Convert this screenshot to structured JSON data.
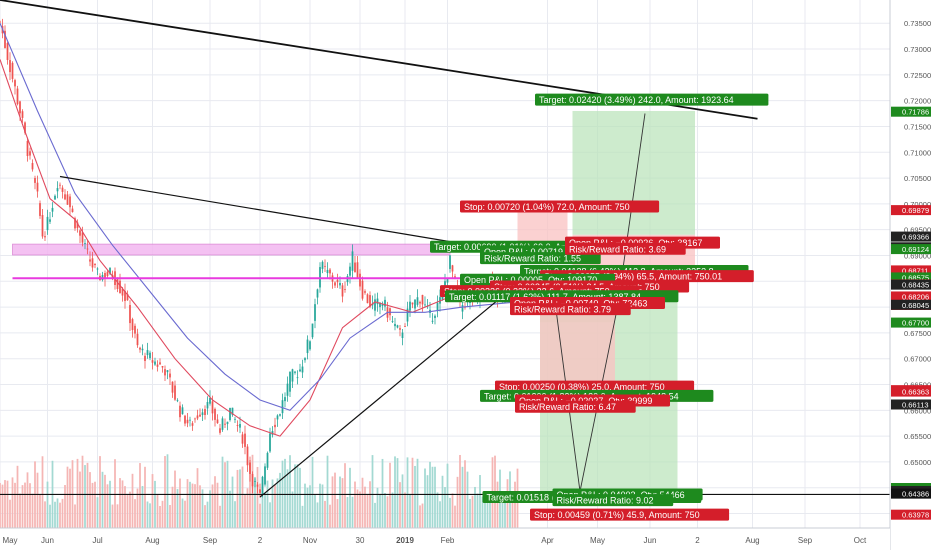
{
  "chart_data": {
    "type": "candlestick",
    "price_axis": {
      "range": [
        0.6372,
        0.7395
      ],
      "ticks": [
        "0.73500",
        "0.73000",
        "0.72500",
        "0.72000",
        "0.71500",
        "0.71000",
        "0.70500",
        "0.70000",
        "0.69500",
        "0.69000",
        "0.68500",
        "0.68000",
        "0.67500",
        "0.67000",
        "0.66500",
        "0.66000",
        "0.65500",
        "0.65000",
        "0.64500",
        "0.64000"
      ],
      "badges": [
        {
          "value": 0.71786,
          "label": "0.71786",
          "color": "#1e8a1e"
        },
        {
          "value": 0.69879,
          "label": "0.69879",
          "color": "#d41e2a"
        },
        {
          "value": 0.69366,
          "label": "0.69366",
          "color": "#222222"
        },
        {
          "value": 0.69159,
          "label": "0.69159",
          "color": "#222222"
        },
        {
          "value": 0.69124,
          "label": "0.69124",
          "color": "#1e8a1e"
        },
        {
          "value": 0.68711,
          "label": "0.68711",
          "color": "#d41e2a"
        },
        {
          "value": 0.68575,
          "label": "0.68575",
          "color": "#1e8a1e"
        },
        {
          "value": 0.6844,
          "label": "0.68440",
          "color": "#d41e2a"
        },
        {
          "value": 0.68435,
          "label": "0.68435",
          "color": "#222222"
        },
        {
          "value": 0.68206,
          "label": "0.68206",
          "color": "#d41e2a"
        },
        {
          "value": 0.68042,
          "label": "0.68042",
          "color": "#d41e2a"
        },
        {
          "value": 0.68045,
          "label": "0.68045",
          "color": "#222222"
        },
        {
          "value": 0.677,
          "label": "0.67700",
          "color": "#1e8a1e"
        },
        {
          "value": 0.66391,
          "label": "0.66391",
          "color": "#d41e2a"
        },
        {
          "value": 0.66363,
          "label": "0.66363",
          "color": "#d41e2a"
        },
        {
          "value": 0.66113,
          "label": "0.66113",
          "color": "#222222"
        },
        {
          "value": 0.64495,
          "label": "0.64495",
          "color": "#1e8a1e"
        },
        {
          "value": 0.64437,
          "label": "0.64437",
          "color": "#222222"
        },
        {
          "value": 0.64386,
          "label": "0.64386",
          "color": "#111111"
        },
        {
          "value": 0.63978,
          "label": "0.63978",
          "color": "#d41e2a"
        }
      ]
    },
    "time_axis": {
      "labels": [
        "May",
        "Jun",
        "Jul",
        "Aug",
        "Sep",
        "2",
        "Nov",
        "30",
        "2019",
        "Feb",
        "Apr",
        "May",
        "Jun",
        "2",
        "Aug",
        "Sep",
        "Oct"
      ],
      "positions": [
        0,
        19,
        39,
        61,
        84,
        104,
        124,
        144,
        162,
        179,
        219,
        239,
        260,
        279,
        301,
        322,
        344
      ],
      "total_days": 356
    },
    "candles_approx": {
      "description": "Price path (daily close, approx.) from May to early Mar",
      "path": [
        [
          0,
          0.7352
        ],
        [
          4,
          0.7265
        ],
        [
          8,
          0.718
        ],
        [
          12,
          0.708
        ],
        [
          15,
          0.701
        ],
        [
          17,
          0.694
        ],
        [
          19,
          0.696
        ],
        [
          23,
          0.7045
        ],
        [
          27,
          0.701
        ],
        [
          31,
          0.695
        ],
        [
          35,
          0.69
        ],
        [
          39,
          0.686
        ],
        [
          45,
          0.6865
        ],
        [
          50,
          0.682
        ],
        [
          55,
          0.672
        ],
        [
          60,
          0.67
        ],
        [
          66,
          0.668
        ],
        [
          72,
          0.66
        ],
        [
          76,
          0.657
        ],
        [
          80,
          0.66
        ],
        [
          84,
          0.661
        ],
        [
          88,
          0.656
        ],
        [
          92,
          0.66
        ],
        [
          97,
          0.655
        ],
        [
          100,
          0.648
        ],
        [
          104,
          0.643
        ],
        [
          108,
          0.656
        ],
        [
          112,
          0.66
        ],
        [
          116,
          0.666
        ],
        [
          120,
          0.668
        ],
        [
          124,
          0.674
        ],
        [
          128,
          0.688
        ],
        [
          132,
          0.686
        ],
        [
          137,
          0.683
        ],
        [
          141,
          0.6895
        ],
        [
          145,
          0.683
        ],
        [
          149,
          0.68
        ],
        [
          153,
          0.681
        ],
        [
          157,
          0.677
        ],
        [
          160,
          0.6745
        ],
        [
          164,
          0.68
        ],
        [
          168,
          0.682
        ],
        [
          172,
          0.678
        ],
        [
          176,
          0.681
        ],
        [
          180,
          0.6888
        ],
        [
          184,
          0.68
        ],
        [
          188,
          0.682
        ],
        [
          192,
          0.682
        ],
        [
          196,
          0.686
        ],
        [
          200,
          0.681
        ],
        [
          204,
          0.684
        ],
        [
          207,
          0.6812
        ]
      ]
    },
    "moving_averages": [
      {
        "color": "#e0495e",
        "path": [
          [
            0,
            0.728
          ],
          [
            10,
            0.714
          ],
          [
            20,
            0.701
          ],
          [
            30,
            0.697
          ],
          [
            40,
            0.689
          ],
          [
            55,
            0.68
          ],
          [
            70,
            0.67
          ],
          [
            85,
            0.662
          ],
          [
            100,
            0.657
          ],
          [
            112,
            0.655
          ],
          [
            124,
            0.662
          ],
          [
            137,
            0.676
          ],
          [
            150,
            0.681
          ],
          [
            165,
            0.679
          ],
          [
            180,
            0.682
          ],
          [
            195,
            0.682
          ],
          [
            207,
            0.682
          ]
        ]
      },
      {
        "color": "#6a6ad0",
        "path": [
          [
            0,
            0.735
          ],
          [
            15,
            0.718
          ],
          [
            30,
            0.702
          ],
          [
            45,
            0.692
          ],
          [
            60,
            0.683
          ],
          [
            75,
            0.674
          ],
          [
            90,
            0.667
          ],
          [
            104,
            0.662
          ],
          [
            116,
            0.66
          ],
          [
            128,
            0.666
          ],
          [
            140,
            0.674
          ],
          [
            155,
            0.679
          ],
          [
            170,
            0.679
          ],
          [
            185,
            0.68
          ],
          [
            207,
            0.681
          ]
        ]
      }
    ],
    "trendlines": [
      {
        "color": "#111111",
        "width": 1.8,
        "points": [
          [
            0,
            0.7395
          ],
          [
            303,
            0.7165
          ]
        ]
      },
      {
        "color": "#111111",
        "width": 1.2,
        "points": [
          [
            24,
            0.7053
          ],
          [
            207,
            0.6905
          ]
        ]
      },
      {
        "color": "#111111",
        "width": 1.2,
        "points": [
          [
            104,
            0.6432
          ],
          [
            207,
            0.6845
          ]
        ]
      },
      {
        "color": "#111111",
        "width": 1.2,
        "points": [
          [
            0,
            0.6437
          ],
          [
            356,
            0.6437
          ]
        ]
      },
      {
        "color": "#e83adf",
        "width": 2,
        "points": [
          [
            5,
            0.6856
          ],
          [
            230,
            0.6856
          ]
        ]
      }
    ],
    "zone_rect": {
      "x0": 5,
      "x1": 180,
      "y0": 0.6922,
      "y1": 0.6901,
      "color": "#f3b7f0"
    },
    "positions": [
      {
        "x0": 207,
        "x1": 227,
        "entry": 0.6907,
        "stop": 0.699,
        "target": 0.6915,
        "kind": "small"
      },
      {
        "x0": 229,
        "x1": 278,
        "entry": 0.694,
        "stop": 0.687,
        "target": 0.718
      },
      {
        "x0": 216,
        "x1": 271,
        "entry": 0.6842,
        "stop": 0.682,
        "target": 0.644
      },
      {
        "x0": 216,
        "x1": 246,
        "entry": 0.6802,
        "stop": 0.664,
        "target": 0.6771
      }
    ],
    "volume": {
      "max": 1.0,
      "note": "relative volume bars May–Mar"
    },
    "labels": [
      {
        "text": "Target: 0.02420 (3.49%) 242.0, Amount: 1923.64",
        "color": "#1e8a1e",
        "x": 214,
        "y": 0.7202
      },
      {
        "text": "Stop: 0.00720 (1.04%) 72.0, Amount: 750",
        "color": "#d41e2a",
        "x": 184,
        "y": 0.6995
      },
      {
        "text": "Target: 0.00690 (1.01%) 69.0, Amount",
        "color": "#1e8a1e",
        "x": 172,
        "y": 0.6917
      },
      {
        "text": "Open P&L: 0.00719, Q",
        "color": "#1e8a1e",
        "x": 192,
        "y": 0.6908
      },
      {
        "text": "Risk/Reward Ratio: 1.55",
        "color": "#1e8a1e",
        "x": 192,
        "y": 0.6895
      },
      {
        "text": "Open P&L: −0.00926, Qty: 38167",
        "color": "#d41e2a",
        "x": 226,
        "y": 0.6925
      },
      {
        "text": "Risk/Reward Ratio: 3.69",
        "color": "#d41e2a",
        "x": 226,
        "y": 0.6913
      },
      {
        "text": "Target: 0.04138 (6.42%) 413.8, Amount: 3253.8",
        "color": "#1e8a1e",
        "x": 208,
        "y": 0.687
      },
      {
        "text": "Stop: 0.00655 (0.94%) 65.5, Amount: 750.01",
        "color": "#d41e2a",
        "x": 216,
        "y": 0.686
      },
      {
        "text": "Open P&L: 0.00005, Qty: 109170",
        "color": "#1e8a1e",
        "x": 184,
        "y": 0.6853
      },
      {
        "text": "Stop: 0.00345 (0.51%) 34.5, Amount: 750",
        "color": "#d41e2a",
        "x": 196,
        "y": 0.684
      },
      {
        "text": "Stop: 0.00226 (0.32%) 22.6, Amount: 750",
        "color": "#d41e2a",
        "x": 176,
        "y": 0.6831
      },
      {
        "text": "Target: 0.01117 (1.62%) 111.7, Amount: 1387.84",
        "color": "#1e8a1e",
        "x": 178,
        "y": 0.6821
      },
      {
        "text": "Open P&L: −0.00740, Qty: 72463",
        "color": "#d41e2a",
        "x": 204,
        "y": 0.6808
      },
      {
        "text": "Risk/Reward Ratio: 3.79",
        "color": "#d41e2a",
        "x": 204,
        "y": 0.6796
      },
      {
        "text": "Stop: 0.00250 (0.38%) 25.0, Amount: 750",
        "color": "#d41e2a",
        "x": 198,
        "y": 0.6646
      },
      {
        "text": "Target: 0.01200 (1.83%) 120.0, Amount: 1948.54",
        "color": "#1e8a1e",
        "x": 192,
        "y": 0.6628
      },
      {
        "text": "Open P&L: −0.02027, Qty: 39999",
        "color": "#d41e2a",
        "x": 206,
        "y": 0.6619
      },
      {
        "text": "Risk/Reward Ratio: 6.47",
        "color": "#d41e2a",
        "x": 206,
        "y": 0.6607
      },
      {
        "text": "Target: 0.01518 (2.16%) 151.8, Amount: 1896",
        "color": "#1e8a1e",
        "x": 193,
        "y": 0.6432
      },
      {
        "text": "Open P&L: 0.04003, Qty: 54466",
        "color": "#1e8a1e",
        "x": 221,
        "y": 0.6437
      },
      {
        "text": "Risk/Reward Ratio: 9.02",
        "color": "#1e8a1e",
        "x": 221,
        "y": 0.6426
      },
      {
        "text": "Stop: 0.00459 (0.71%) 45.9, Amount: 750",
        "color": "#d41e2a",
        "x": 212,
        "y": 0.6398
      }
    ],
    "colors": {
      "up": "#26a69a",
      "down": "#ef5350",
      "volume_up": "#a3d9d2",
      "volume_down": "#f5b5b4",
      "target_fill": "#b8e3b8",
      "stop_fill": "#f9c2c2",
      "grid": "#e8eaf0"
    }
  }
}
